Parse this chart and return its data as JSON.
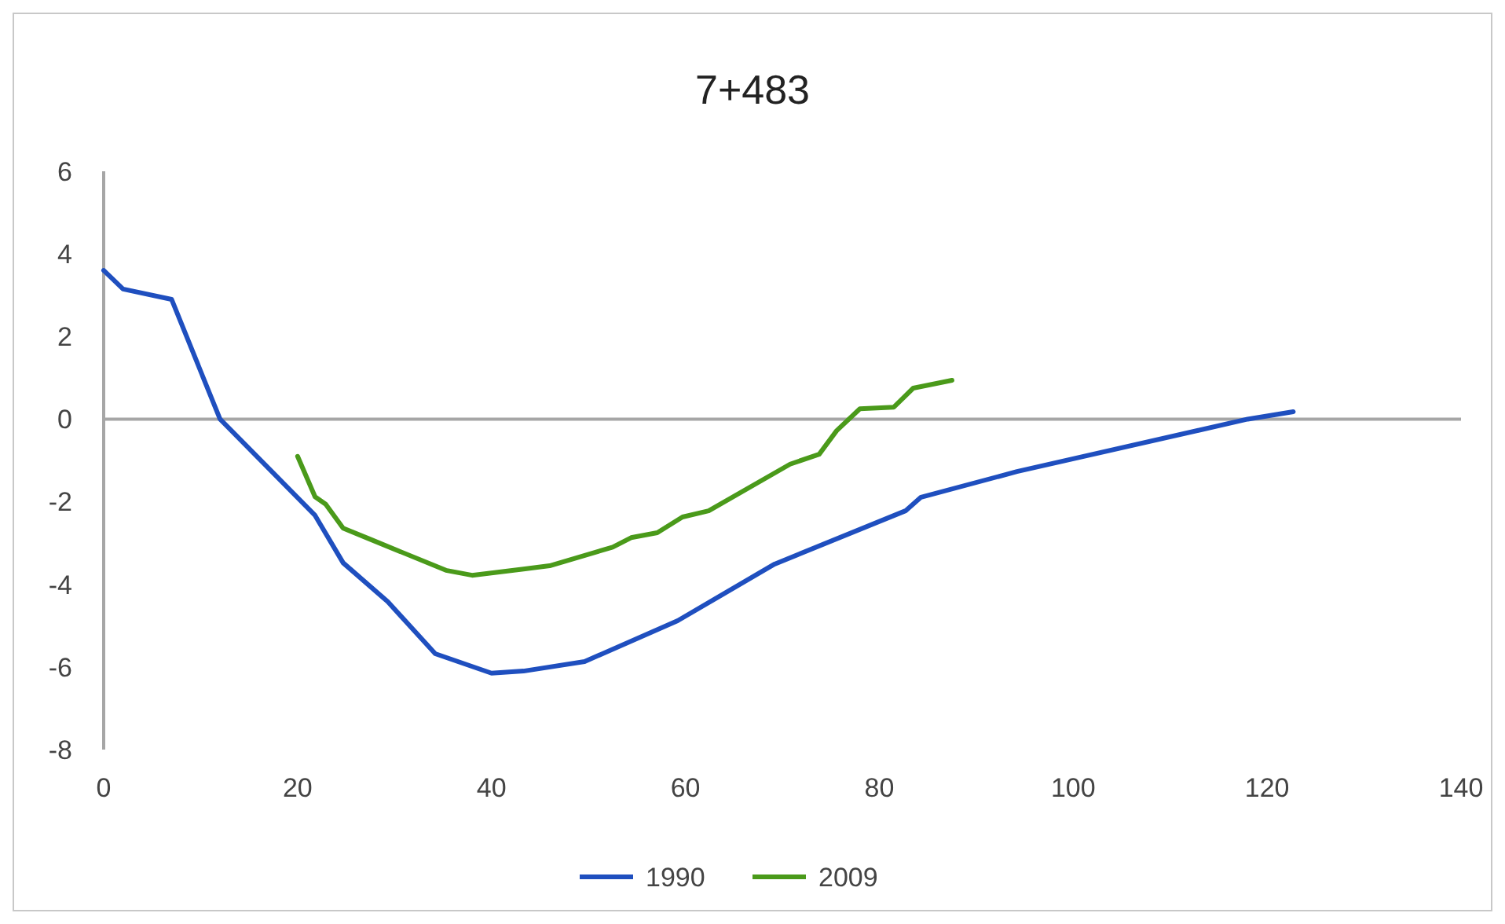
{
  "chart_data": {
    "type": "line",
    "title": "7+483",
    "xlim": [
      0,
      140
    ],
    "xticks": [
      0,
      20,
      40,
      60,
      80,
      100,
      120,
      140
    ],
    "ylim": [
      -8,
      6
    ],
    "yticks": [
      -8,
      -6,
      -4,
      -2,
      0,
      2,
      4,
      6
    ],
    "legend": "bottom",
    "line_style": "solid",
    "series": [
      {
        "name": "1990",
        "color": "#1f4fbf",
        "x": [
          0,
          2,
          7,
          12,
          21.8,
          24.7,
          29.3,
          34.2,
          40,
          43.3,
          49.6,
          59.2,
          69.2,
          82.7,
          84.3,
          94.2,
          118,
          122.7
        ],
        "values": [
          3.6,
          3.15,
          2.9,
          0,
          -2.33,
          -3.48,
          -4.42,
          -5.68,
          -6.15,
          -6.1,
          -5.87,
          -4.88,
          -3.51,
          -2.22,
          -1.89,
          -1.27,
          0,
          0.18
        ]
      },
      {
        "name": "2009",
        "color": "#4a9a1a",
        "x": [
          20,
          21.8,
          22.9,
          24.7,
          27.4,
          35.3,
          38,
          43.3,
          46,
          52.5,
          54.4,
          57.1,
          59.7,
          62.4,
          70.8,
          73.8,
          75.6,
          78,
          81.5,
          83.5,
          87.5
        ],
        "values": [
          -0.9,
          -1.88,
          -2.06,
          -2.64,
          -2.9,
          -3.66,
          -3.78,
          -3.63,
          -3.55,
          -3.1,
          -2.87,
          -2.75,
          -2.37,
          -2.22,
          -1.09,
          -0.85,
          -0.28,
          0.25,
          0.29,
          0.75,
          0.94
        ]
      }
    ]
  }
}
